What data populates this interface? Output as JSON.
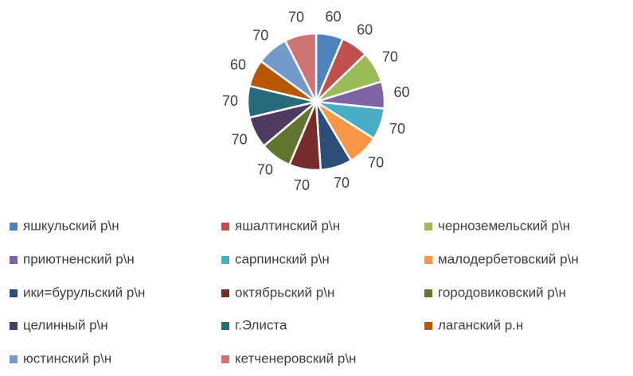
{
  "chart_data": {
    "type": "pie",
    "categories": [
      "яшкульский р\\н",
      "яшалтинский р\\н",
      "черноземельский р\\н",
      "приютненский р\\н",
      "сарпинский р\\н",
      "малодербетовский р\\н",
      "ики=бурульский р\\н",
      "октябрьский р\\н",
      "городовиковский р\\н",
      "целинный р\\н",
      "г.Элиста",
      "лаганский р.н",
      "юстинский р\\н",
      "кетченеровский р\\н"
    ],
    "values": [
      60,
      60,
      70,
      60,
      70,
      70,
      70,
      70,
      70,
      70,
      70,
      60,
      70,
      70
    ],
    "colors": [
      "#4f81bd",
      "#c0504d",
      "#9bbb59",
      "#8064a2",
      "#4bacc6",
      "#f79646",
      "#2c4d75",
      "#772c2a",
      "#5f7530",
      "#4d3b62",
      "#276a7c",
      "#b65708",
      "#729aca",
      "#cd7371"
    ],
    "legend": "bottom"
  }
}
